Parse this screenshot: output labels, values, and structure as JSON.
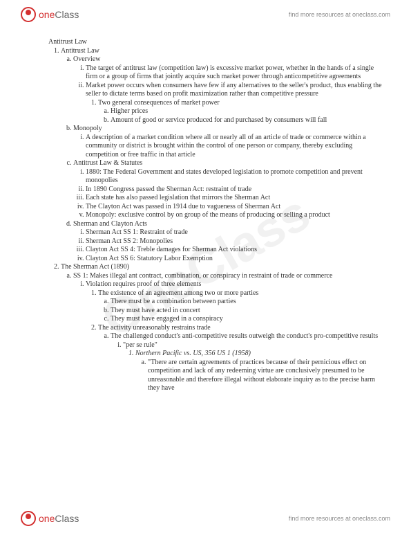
{
  "brand": {
    "one": "one",
    "class": "Class"
  },
  "findMore": "find more resources at oneclass.com",
  "watermark": "OneClass",
  "doc": {
    "title": "Antitrust Law",
    "s1": {
      "h": "Antitrust Law",
      "a": {
        "h": "Overview",
        "i1": "The target of antitrust law (competition law) is excessive market power, whether in the hands of a single firm or a group of firms that jointly acquire such market power through anticompetitive agreements",
        "i2": "Market power occurs when consumers have few if any alternatives to the seller's product, thus enabling the seller to dictate terms based on profit maximization rather than competitive pressure",
        "i2_1": "Two general consequences of market power",
        "i2_1a": "Higher prices",
        "i2_1b": "Amount of good or service produced for and purchased by consumers will fall"
      },
      "b": {
        "h": "Monopoly",
        "i1": "A description of a market condition where all or nearly all of an article of trade or commerce within a community or district is brought within the control of one person or company, thereby excluding competition or free traffic in that article"
      },
      "c": {
        "h": "Antitrust Law & Statutes",
        "i1": "1880: The Federal Government and states developed legislation to promote competition and prevent monopolies",
        "i2": "In 1890 Congress passed the Sherman Act: restraint of trade",
        "i3": "Each state has also passed legislation that mirrors the Sherman Act",
        "i4": "The Clayton Act was passed in 1914 due to vagueness of Sherman Act",
        "i5": "Monopoly: exclusive control by on group of the means of producing or selling a product"
      },
      "d": {
        "h": "Sherman and Clayton Acts",
        "i1": "Sherman Act SS 1: Restraint of trade",
        "i2": "Sherman Act SS 2: Monopolies",
        "i3": "Clayton Act SS 4: Treble damages for Sherman Act violations",
        "i4": "Clayton Act SS 6: Statutory Labor Exemption"
      }
    },
    "s2": {
      "h": "The Sherman Act (1890)",
      "a": {
        "h": "SS 1: Makes illegal ant contract, combination, or conspiracy in restraint of trade or commerce",
        "i1": "Violation requires proof of three elements",
        "i1_1": "The existence of an agreement among two or more parties",
        "i1_1a": "There must be a combination between parties",
        "i1_1b": "They must have acted in concert",
        "i1_1c": "They must have engaged in a conspiracy",
        "i1_2": "The activity unreasonably restrains trade",
        "i1_2a": "The challenged conduct's anti-competitive results outweigh the conduct's pro-competitive results",
        "i1_2a_i": "\"per se rule\"",
        "case": "Northern Pacific vs. US, 356 US 1 (1958)",
        "case_a": "\"There are certain agreements of practices because of their pernicious effect on competition and lack of any redeeming virtue are conclusively presumed to be unreasonable and therefore illegal without elaborate inquiry as to the precise harm they have"
      }
    }
  }
}
